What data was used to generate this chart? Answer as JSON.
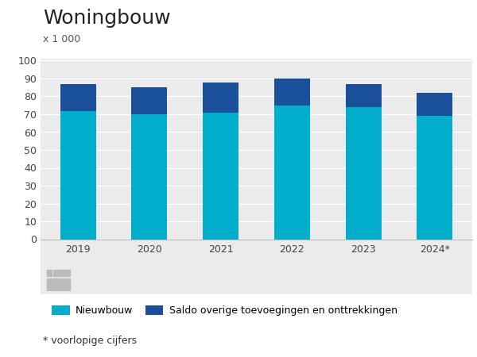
{
  "title": "Woningbouw",
  "ylabel_unit": "x 1 000",
  "categories": [
    "2019",
    "2020",
    "2021",
    "2022",
    "2023",
    "2024*"
  ],
  "nieuwbouw": [
    72,
    70,
    71,
    75,
    74,
    69
  ],
  "saldo": [
    15,
    15,
    17,
    15,
    13,
    13
  ],
  "color_nieuwbouw": "#00AECC",
  "color_saldo": "#1A4F9C",
  "ylim": [
    0,
    100
  ],
  "yticks": [
    0,
    10,
    20,
    30,
    40,
    50,
    60,
    70,
    80,
    90,
    100
  ],
  "legend_nieuwbouw": "Nieuwbouw",
  "legend_saldo": "Saldo overige toevoegingen en onttrekkingen",
  "footnote": "* voorlopige cijfers",
  "background_chart": "#ebebeb",
  "background_fig": "#ffffff",
  "bar_width": 0.5,
  "title_fontsize": 18,
  "unit_fontsize": 9,
  "tick_fontsize": 9,
  "legend_fontsize": 9
}
